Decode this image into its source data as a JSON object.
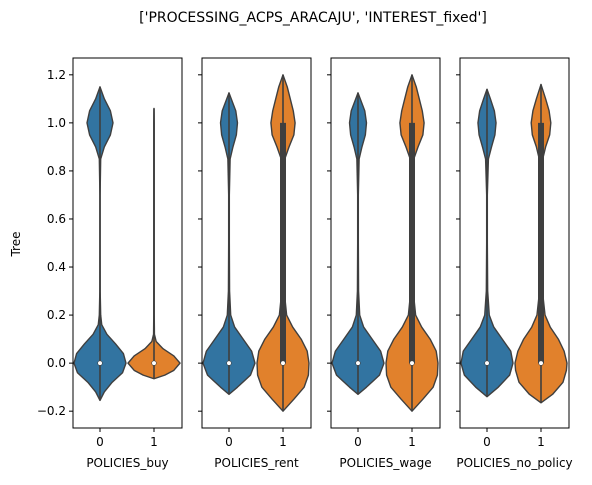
{
  "suptitle": "['PROCESSING_ACPS_ARACAJU', 'INTEREST_fixed']",
  "chart_data": {
    "type": "violin",
    "ylabel": "Tree",
    "ylim": [
      -0.27,
      1.27
    ],
    "yticks": [
      -0.2,
      0.0,
      0.2,
      0.4,
      0.6,
      0.8,
      1.0,
      1.2
    ],
    "ytick_labels": [
      "−0.2",
      "0.0",
      "0.2",
      "0.4",
      "0.6",
      "0.8",
      "1.0",
      "1.2"
    ],
    "colors": {
      "0": "#3274a1",
      "1": "#e1812c",
      "edge": "#3f3f3f"
    },
    "panels": [
      {
        "xlabel": "POLICIES_buy",
        "categories": [
          "0",
          "1"
        ],
        "violins": [
          {
            "category": "0",
            "min": -0.155,
            "max": 1.15,
            "median": 0.0,
            "q1": 0.0,
            "q3": 0.0,
            "profile": [
              [
                -0.155,
                0.0
              ],
              [
                -0.12,
                0.05
              ],
              [
                -0.08,
                0.14
              ],
              [
                -0.04,
                0.26
              ],
              [
                0.0,
                0.3
              ],
              [
                0.04,
                0.27
              ],
              [
                0.08,
                0.18
              ],
              [
                0.12,
                0.08
              ],
              [
                0.16,
                0.02
              ],
              [
                0.2,
                0.008
              ],
              [
                0.3,
                0.002
              ],
              [
                0.5,
                0.001
              ],
              [
                0.7,
                0.001
              ],
              [
                0.85,
                0.008
              ],
              [
                0.9,
                0.05
              ],
              [
                0.95,
                0.12
              ],
              [
                1.0,
                0.15
              ],
              [
                1.05,
                0.12
              ],
              [
                1.1,
                0.05
              ],
              [
                1.15,
                0.0
              ]
            ]
          },
          {
            "category": "1",
            "min": -0.065,
            "max": 1.06,
            "median": 0.0,
            "q1": 0.0,
            "q3": 0.0,
            "profile": [
              [
                -0.065,
                0.0
              ],
              [
                -0.05,
                0.3
              ],
              [
                -0.03,
                0.55
              ],
              [
                0.0,
                0.72
              ],
              [
                0.03,
                0.55
              ],
              [
                0.06,
                0.25
              ],
              [
                0.09,
                0.06
              ],
              [
                0.12,
                0.012
              ],
              [
                0.2,
                0.007
              ],
              [
                0.4,
                0.006
              ],
              [
                0.6,
                0.006
              ],
              [
                0.8,
                0.006
              ],
              [
                0.95,
                0.006
              ],
              [
                1.0,
                0.006
              ],
              [
                1.04,
                0.003
              ],
              [
                1.06,
                0.0
              ]
            ]
          }
        ]
      },
      {
        "xlabel": "POLICIES_rent",
        "categories": [
          "0",
          "1"
        ],
        "violins": [
          {
            "category": "0",
            "min": -0.13,
            "max": 1.125,
            "median": 0.0,
            "q1": 0.0,
            "q3": 0.0,
            "profile": [
              [
                -0.13,
                0.0
              ],
              [
                -0.1,
                0.15
              ],
              [
                -0.05,
                0.38
              ],
              [
                0.0,
                0.46
              ],
              [
                0.05,
                0.4
              ],
              [
                0.1,
                0.25
              ],
              [
                0.15,
                0.1
              ],
              [
                0.2,
                0.03
              ],
              [
                0.3,
                0.01
              ],
              [
                0.5,
                0.006
              ],
              [
                0.7,
                0.006
              ],
              [
                0.85,
                0.02
              ],
              [
                0.9,
                0.07
              ],
              [
                0.95,
                0.13
              ],
              [
                1.0,
                0.15
              ],
              [
                1.05,
                0.12
              ],
              [
                1.1,
                0.04
              ],
              [
                1.125,
                0.0
              ]
            ]
          },
          {
            "category": "1",
            "min": -0.2,
            "max": 1.2,
            "median": 0.0,
            "q1": 0.0,
            "q3": 1.0,
            "profile": [
              [
                -0.2,
                0.0
              ],
              [
                -0.15,
                0.18
              ],
              [
                -0.1,
                0.35
              ],
              [
                -0.05,
                0.42
              ],
              [
                0.0,
                0.43
              ],
              [
                0.05,
                0.4
              ],
              [
                0.1,
                0.3
              ],
              [
                0.15,
                0.16
              ],
              [
                0.2,
                0.06
              ],
              [
                0.3,
                0.02
              ],
              [
                0.5,
                0.015
              ],
              [
                0.7,
                0.015
              ],
              [
                0.85,
                0.03
              ],
              [
                0.9,
                0.1
              ],
              [
                0.95,
                0.18
              ],
              [
                1.0,
                0.2
              ],
              [
                1.05,
                0.17
              ],
              [
                1.1,
                0.12
              ],
              [
                1.15,
                0.07
              ],
              [
                1.2,
                0.0
              ]
            ]
          }
        ]
      },
      {
        "xlabel": "POLICIES_wage",
        "categories": [
          "0",
          "1"
        ],
        "violins": [
          {
            "category": "0",
            "min": -0.13,
            "max": 1.125,
            "median": 0.0,
            "q1": 0.0,
            "q3": 0.0,
            "profile": [
              [
                -0.13,
                0.0
              ],
              [
                -0.1,
                0.15
              ],
              [
                -0.05,
                0.38
              ],
              [
                0.0,
                0.46
              ],
              [
                0.05,
                0.4
              ],
              [
                0.1,
                0.25
              ],
              [
                0.15,
                0.1
              ],
              [
                0.2,
                0.03
              ],
              [
                0.3,
                0.01
              ],
              [
                0.5,
                0.006
              ],
              [
                0.7,
                0.006
              ],
              [
                0.85,
                0.02
              ],
              [
                0.9,
                0.07
              ],
              [
                0.95,
                0.13
              ],
              [
                1.0,
                0.15
              ],
              [
                1.05,
                0.12
              ],
              [
                1.1,
                0.04
              ],
              [
                1.125,
                0.0
              ]
            ]
          },
          {
            "category": "1",
            "min": -0.2,
            "max": 1.2,
            "median": 0.0,
            "q1": 0.0,
            "q3": 1.0,
            "profile": [
              [
                -0.2,
                0.0
              ],
              [
                -0.15,
                0.18
              ],
              [
                -0.1,
                0.35
              ],
              [
                -0.05,
                0.42
              ],
              [
                0.0,
                0.43
              ],
              [
                0.05,
                0.4
              ],
              [
                0.1,
                0.3
              ],
              [
                0.15,
                0.16
              ],
              [
                0.2,
                0.06
              ],
              [
                0.3,
                0.02
              ],
              [
                0.5,
                0.015
              ],
              [
                0.7,
                0.015
              ],
              [
                0.85,
                0.03
              ],
              [
                0.9,
                0.1
              ],
              [
                0.95,
                0.18
              ],
              [
                1.0,
                0.2
              ],
              [
                1.05,
                0.17
              ],
              [
                1.1,
                0.12
              ],
              [
                1.15,
                0.07
              ],
              [
                1.2,
                0.0
              ]
            ]
          }
        ]
      },
      {
        "xlabel": "POLICIES_no_policy",
        "categories": [
          "0",
          "1"
        ],
        "violins": [
          {
            "category": "0",
            "min": -0.14,
            "max": 1.14,
            "median": 0.0,
            "q1": 0.0,
            "q3": 0.0,
            "profile": [
              [
                -0.14,
                0.0
              ],
              [
                -0.1,
                0.2
              ],
              [
                -0.05,
                0.4
              ],
              [
                0.0,
                0.46
              ],
              [
                0.05,
                0.42
              ],
              [
                0.1,
                0.27
              ],
              [
                0.15,
                0.12
              ],
              [
                0.2,
                0.04
              ],
              [
                0.3,
                0.012
              ],
              [
                0.5,
                0.006
              ],
              [
                0.7,
                0.006
              ],
              [
                0.85,
                0.025
              ],
              [
                0.9,
                0.08
              ],
              [
                0.95,
                0.14
              ],
              [
                1.0,
                0.16
              ],
              [
                1.05,
                0.13
              ],
              [
                1.1,
                0.06
              ],
              [
                1.14,
                0.0
              ]
            ]
          },
          {
            "category": "1",
            "min": -0.165,
            "max": 1.16,
            "median": 0.0,
            "q1": 0.0,
            "q3": 1.0,
            "profile": [
              [
                -0.165,
                0.0
              ],
              [
                -0.13,
                0.2
              ],
              [
                -0.08,
                0.38
              ],
              [
                -0.03,
                0.44
              ],
              [
                0.0,
                0.45
              ],
              [
                0.05,
                0.4
              ],
              [
                0.1,
                0.3
              ],
              [
                0.15,
                0.16
              ],
              [
                0.2,
                0.07
              ],
              [
                0.3,
                0.025
              ],
              [
                0.5,
                0.015
              ],
              [
                0.7,
                0.015
              ],
              [
                0.85,
                0.03
              ],
              [
                0.9,
                0.08
              ],
              [
                0.95,
                0.15
              ],
              [
                1.0,
                0.17
              ],
              [
                1.05,
                0.14
              ],
              [
                1.1,
                0.08
              ],
              [
                1.16,
                0.0
              ]
            ]
          }
        ]
      }
    ]
  }
}
